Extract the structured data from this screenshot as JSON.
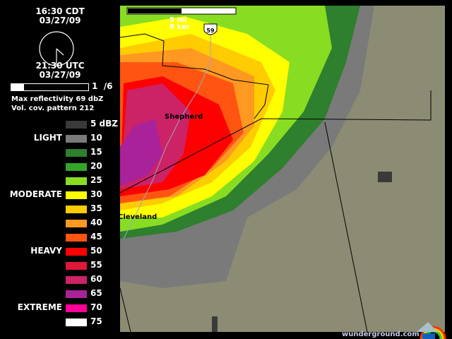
{
  "clock": {
    "local_time": "16:30 CDT",
    "local_date": "03/27/09",
    "utc_time": "21:30 UTC",
    "utc_date": "03/27/09",
    "hour": 4,
    "minute": 30
  },
  "progress": {
    "frame": "1",
    "total": "/6",
    "fraction": 0.1667
  },
  "info": {
    "max_reflectivity": "Max reflectivity 69 dbZ",
    "vcp": "Vol. cov. pattern 212"
  },
  "legend": [
    {
      "value": "5 dBZ",
      "color": "#3a3a3a",
      "category": ""
    },
    {
      "value": "10",
      "color": "#7a7a7a",
      "category": "LIGHT"
    },
    {
      "value": "15",
      "color": "#2e7f2e",
      "category": ""
    },
    {
      "value": "20",
      "color": "#33a52a",
      "category": ""
    },
    {
      "value": "25",
      "color": "#88dd22",
      "category": ""
    },
    {
      "value": "30",
      "color": "#ffff00",
      "category": "MODERATE"
    },
    {
      "value": "35",
      "color": "#ffcc00",
      "category": ""
    },
    {
      "value": "40",
      "color": "#ff9922",
      "category": ""
    },
    {
      "value": "45",
      "color": "#ff5511",
      "category": ""
    },
    {
      "value": "50",
      "color": "#ff0000",
      "category": "HEAVY"
    },
    {
      "value": "55",
      "color": "#e0173a",
      "category": ""
    },
    {
      "value": "60",
      "color": "#cc2266",
      "category": ""
    },
    {
      "value": "65",
      "color": "#aa2299",
      "category": ""
    },
    {
      "value": "70",
      "color": "#ff0099",
      "category": "EXTREME"
    },
    {
      "value": "75",
      "color": "#ffffff",
      "category": ""
    }
  ],
  "map": {
    "scale_mi": "5 mi",
    "scale_km": "8 km",
    "highway": "59",
    "cities": [
      "Shepherd",
      "Cleveland"
    ],
    "background": "#8c8c74"
  },
  "footer": {
    "brand": "wunderground.com"
  }
}
